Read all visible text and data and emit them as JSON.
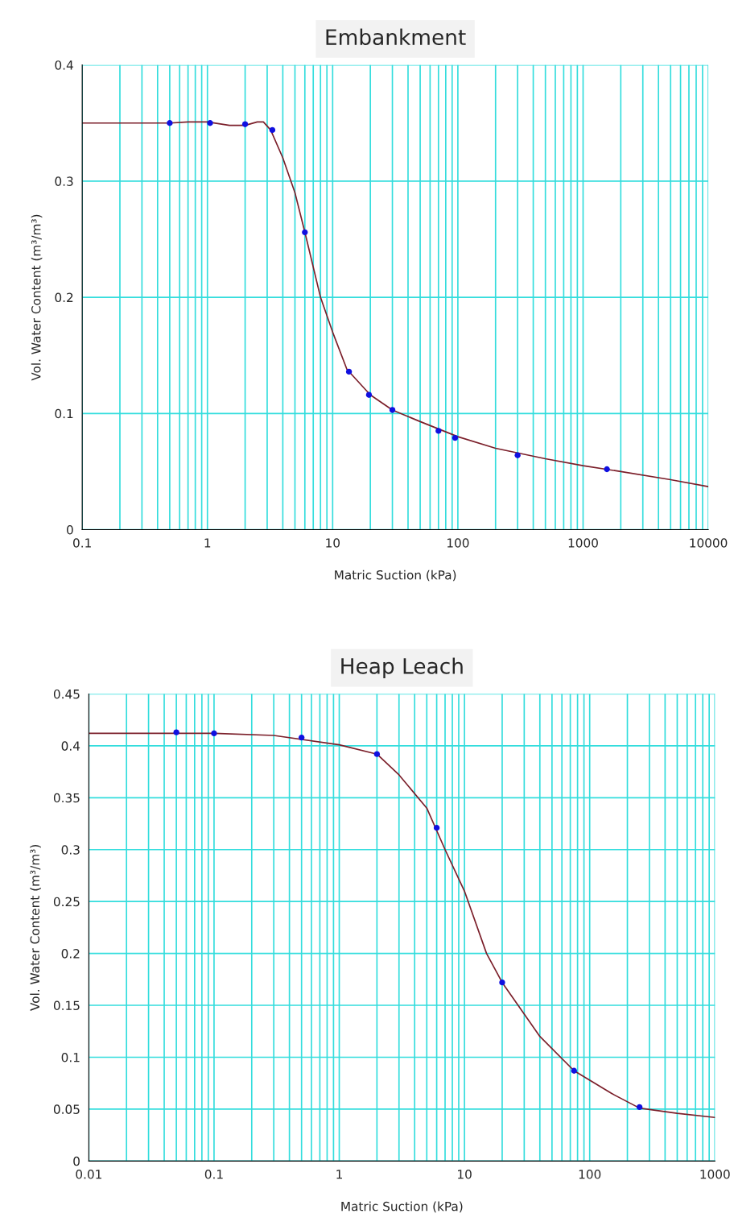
{
  "chart_data": [
    {
      "type": "line",
      "title": "Embankment",
      "xlabel": "Matric Suction (kPa)",
      "ylabel": "Vol. Water Content (m³/m³)",
      "log": "x",
      "grid": true,
      "xlim": [
        0.1,
        10000
      ],
      "xticks": [
        0.1,
        1,
        10,
        100,
        1000,
        10000
      ],
      "ylim": [
        0,
        0.4
      ],
      "yticks": [
        0,
        0.1,
        0.2,
        0.3,
        0.4
      ],
      "series": [
        {
          "color": "#7b1f2a",
          "marker": "none",
          "x": [
            0.1,
            0.5,
            0.7,
            1,
            1.5,
            2,
            2.5,
            2.8,
            3.2,
            4,
            5,
            6,
            8,
            10,
            13,
            20,
            30,
            50,
            100,
            200,
            500,
            1000,
            2000,
            5000,
            10000
          ],
          "values": [
            0.35,
            0.35,
            0.351,
            0.351,
            0.348,
            0.348,
            0.351,
            0.351,
            0.344,
            0.32,
            0.29,
            0.256,
            0.2,
            0.17,
            0.138,
            0.116,
            0.103,
            0.093,
            0.08,
            0.07,
            0.061,
            0.055,
            0.05,
            0.043,
            0.037
          ]
        },
        {
          "type": "scatter",
          "color": "#1010e0",
          "marker": "circle",
          "x": [
            0.5,
            1.05,
            2,
            3.3,
            6,
            13.5,
            19.5,
            30,
            70,
            95,
            300,
            1550
          ],
          "values": [
            0.35,
            0.35,
            0.349,
            0.344,
            0.256,
            0.136,
            0.116,
            0.103,
            0.085,
            0.079,
            0.064,
            0.052
          ]
        }
      ]
    },
    {
      "type": "line",
      "title": "Heap Leach",
      "xlabel": "Matric Suction (kPa)",
      "ylabel": "Vol. Water Content (m³/m³)",
      "log": "x",
      "grid": true,
      "xlim": [
        0.01,
        1000
      ],
      "xticks": [
        0.01,
        0.1,
        1,
        10,
        100,
        1000
      ],
      "ylim": [
        0,
        0.45
      ],
      "yticks": [
        0,
        0.05,
        0.1,
        0.15,
        0.2,
        0.25,
        0.3,
        0.35,
        0.4,
        0.45
      ],
      "series": [
        {
          "color": "#7b1f2a",
          "marker": "none",
          "x": [
            0.01,
            0.1,
            0.3,
            1,
            2,
            3,
            5,
            7,
            10,
            15,
            20,
            40,
            75,
            150,
            250,
            500,
            1000
          ],
          "values": [
            0.412,
            0.412,
            0.41,
            0.401,
            0.392,
            0.372,
            0.34,
            0.3,
            0.26,
            0.2,
            0.172,
            0.12,
            0.087,
            0.065,
            0.051,
            0.046,
            0.042
          ]
        },
        {
          "type": "scatter",
          "color": "#1010e0",
          "marker": "circle",
          "x": [
            0.05,
            0.1,
            0.5,
            2,
            6,
            20,
            75,
            250
          ],
          "values": [
            0.413,
            0.412,
            0.408,
            0.392,
            0.321,
            0.172,
            0.087,
            0.052
          ]
        }
      ]
    }
  ]
}
